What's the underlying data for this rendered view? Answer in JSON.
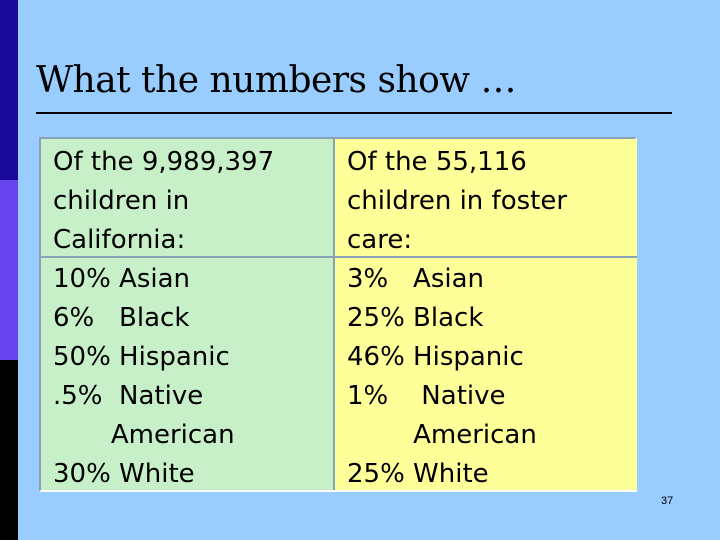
{
  "slide": {
    "title": "What the numbers show …",
    "number": "37"
  },
  "table": {
    "left": {
      "header": "Of the 9,989,397\nchildren in\nCalifornia:",
      "body": "10% Asian\n6%   Black\n50% Hispanic\n.5%  Native\n       American\n30% White"
    },
    "right": {
      "header": "Of the 55,116\nchildren in foster\ncare:",
      "body": "3%   Asian\n25% Black\n46% Hispanic\n1%    Native\n        American\n25% White"
    }
  },
  "colors": {
    "background": "#99ccff",
    "left_column": "#c8f0c8",
    "right_column": "#ffff99"
  }
}
